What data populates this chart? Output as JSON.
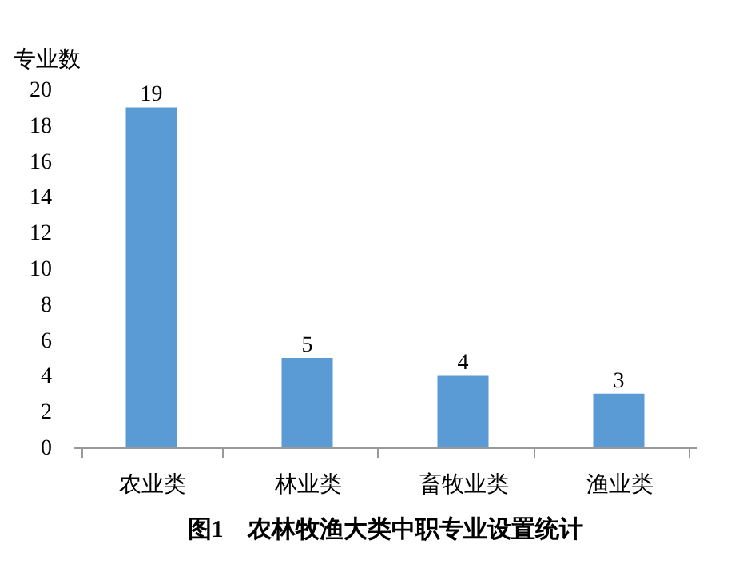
{
  "chart_data": {
    "type": "bar",
    "title": "图1　农林牧渔大类中职专业设置统计",
    "ylabel": "专业数",
    "categories": [
      "农业类",
      "林业类",
      "畜牧业类",
      "渔业类"
    ],
    "values": [
      19,
      5,
      4,
      3
    ],
    "color": "#5b9bd5",
    "ylim": [
      0,
      20
    ],
    "yticks": [
      0,
      2,
      4,
      6,
      8,
      10,
      12,
      14,
      16,
      18,
      20
    ],
    "grid": false,
    "data_labels": true
  }
}
